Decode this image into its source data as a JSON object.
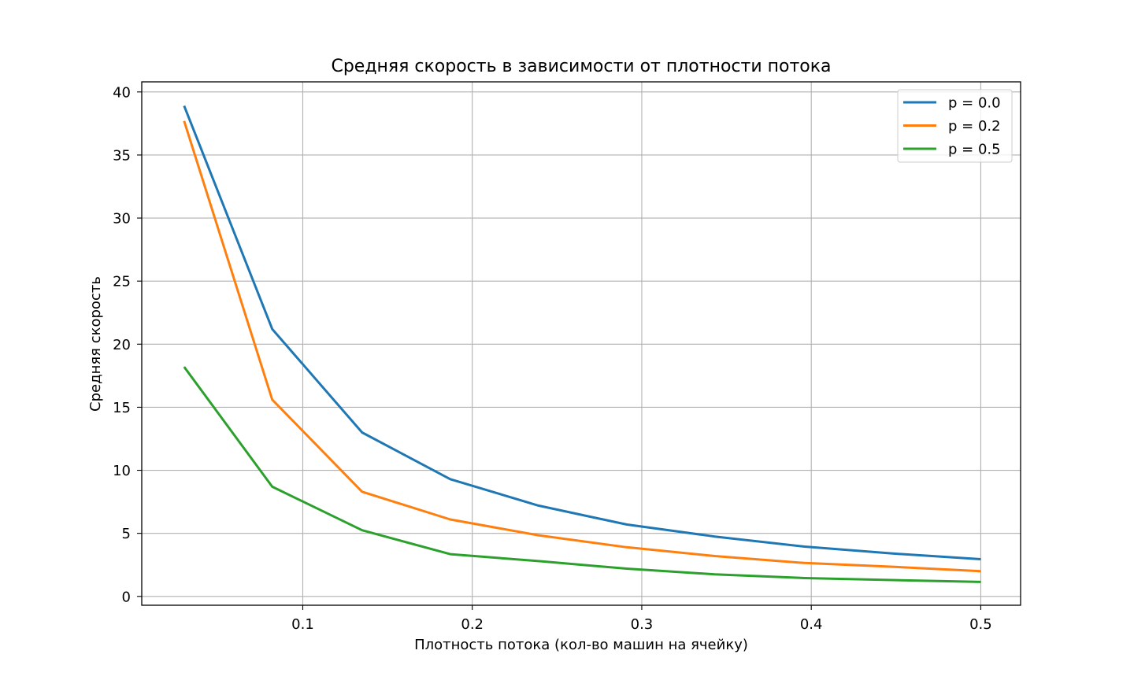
{
  "chart_data": {
    "type": "line",
    "title": "Средняя скорость в зависимости от плотности потока",
    "xlabel": "Плотность потока (кол-во машин на ячейку)",
    "ylabel": "Средняя скорость",
    "xlim": [
      0.005,
      0.5235
    ],
    "ylim": [
      -0.7,
      40.8
    ],
    "xticks": [
      0.1,
      0.2,
      0.3,
      0.4,
      0.5
    ],
    "xtick_labels": [
      "0.1",
      "0.2",
      "0.3",
      "0.4",
      "0.5"
    ],
    "yticks": [
      0,
      5,
      10,
      15,
      20,
      25,
      30,
      35,
      40
    ],
    "ytick_labels": [
      "0",
      "5",
      "10",
      "15",
      "20",
      "25",
      "30",
      "35",
      "40"
    ],
    "grid": true,
    "legend_position": "top-right",
    "x": [
      0.03,
      0.082,
      0.135,
      0.187,
      0.239,
      0.291,
      0.343,
      0.396,
      0.448,
      0.5
    ],
    "series": [
      {
        "name": "p = 0.0",
        "color": "#1f77b4",
        "values": [
          38.9,
          21.2,
          13.0,
          9.3,
          7.2,
          5.7,
          4.75,
          3.95,
          3.4,
          2.95
        ]
      },
      {
        "name": "p = 0.2",
        "color": "#ff7f0e",
        "values": [
          37.7,
          15.6,
          8.3,
          6.1,
          4.85,
          3.9,
          3.2,
          2.65,
          2.35,
          2.0
        ]
      },
      {
        "name": "p = 0.5",
        "color": "#2ca02c",
        "values": [
          18.2,
          8.7,
          5.25,
          3.35,
          2.8,
          2.2,
          1.75,
          1.45,
          1.3,
          1.15
        ]
      }
    ]
  }
}
